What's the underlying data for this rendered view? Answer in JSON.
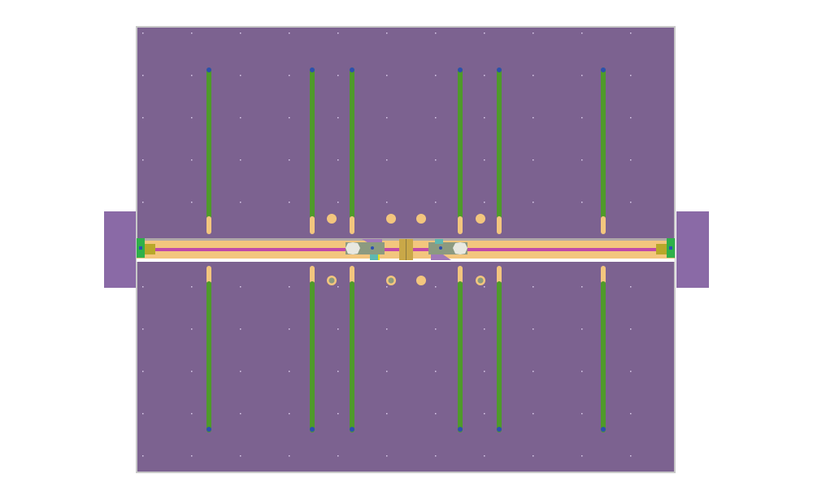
{
  "colors": {
    "background": "#ffffff",
    "board": "#7c6290",
    "board_border": "#c8c8c8",
    "tab": "#8a6aa6",
    "feed_strip": "#f3c67e",
    "feed_line": "#c04aa8",
    "rod_green": "#4f9a2a",
    "rod_tan": "#f3c67e",
    "rod_cap": "#2c4fb0",
    "connector_green": "#2fb04a",
    "connector_gold": "#b8a82a",
    "hex_nut": "#e8e8e0",
    "bracket": "#8c9a80",
    "teal_pad": "#5fb8b0"
  },
  "icons": {
    "left_connector": "sma-connector-icon",
    "right_connector": "sma-connector-icon",
    "nut": "hex-nut-icon"
  }
}
